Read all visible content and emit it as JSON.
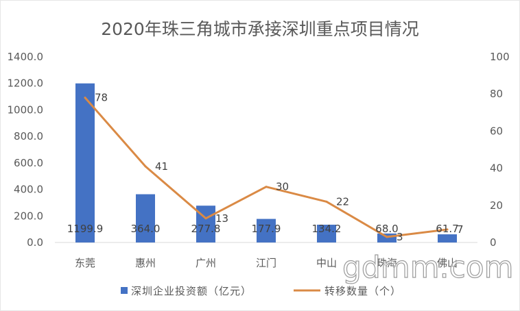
{
  "chart_data": {
    "type": "bar",
    "title": "2020年珠三角城市承接深圳重点项目情况",
    "categories": [
      "东莞",
      "惠州",
      "广州",
      "江门",
      "中山",
      "珠海",
      "佛山"
    ],
    "series": [
      {
        "name": "深圳企业投资额（亿元）",
        "type": "bar",
        "axis": "left",
        "values": [
          1199.9,
          364.0,
          277.8,
          177.9,
          134.2,
          68.0,
          61.7
        ],
        "value_labels": [
          "1199.9",
          "364.0",
          "277.8",
          "177.9",
          "134.2",
          "68.0",
          "61.7"
        ],
        "color": "#4472C4"
      },
      {
        "name": "转移数量（个）",
        "type": "line",
        "axis": "right",
        "values": [
          78,
          41,
          13,
          30,
          22,
          3,
          7
        ],
        "color": "#DA8A45"
      }
    ],
    "y_left": {
      "range": [
        0,
        1400
      ],
      "tick_labels": [
        "0.0",
        "200.0",
        "400.0",
        "600.0",
        "800.0",
        "1000.0",
        "1200.0",
        "1400.0"
      ]
    },
    "y_right": {
      "range": [
        0,
        100
      ],
      "tick_labels": [
        "0",
        "20",
        "40",
        "60",
        "80",
        "100"
      ]
    },
    "grid": false,
    "legend": "bottom"
  },
  "watermark": "gdmm.com"
}
